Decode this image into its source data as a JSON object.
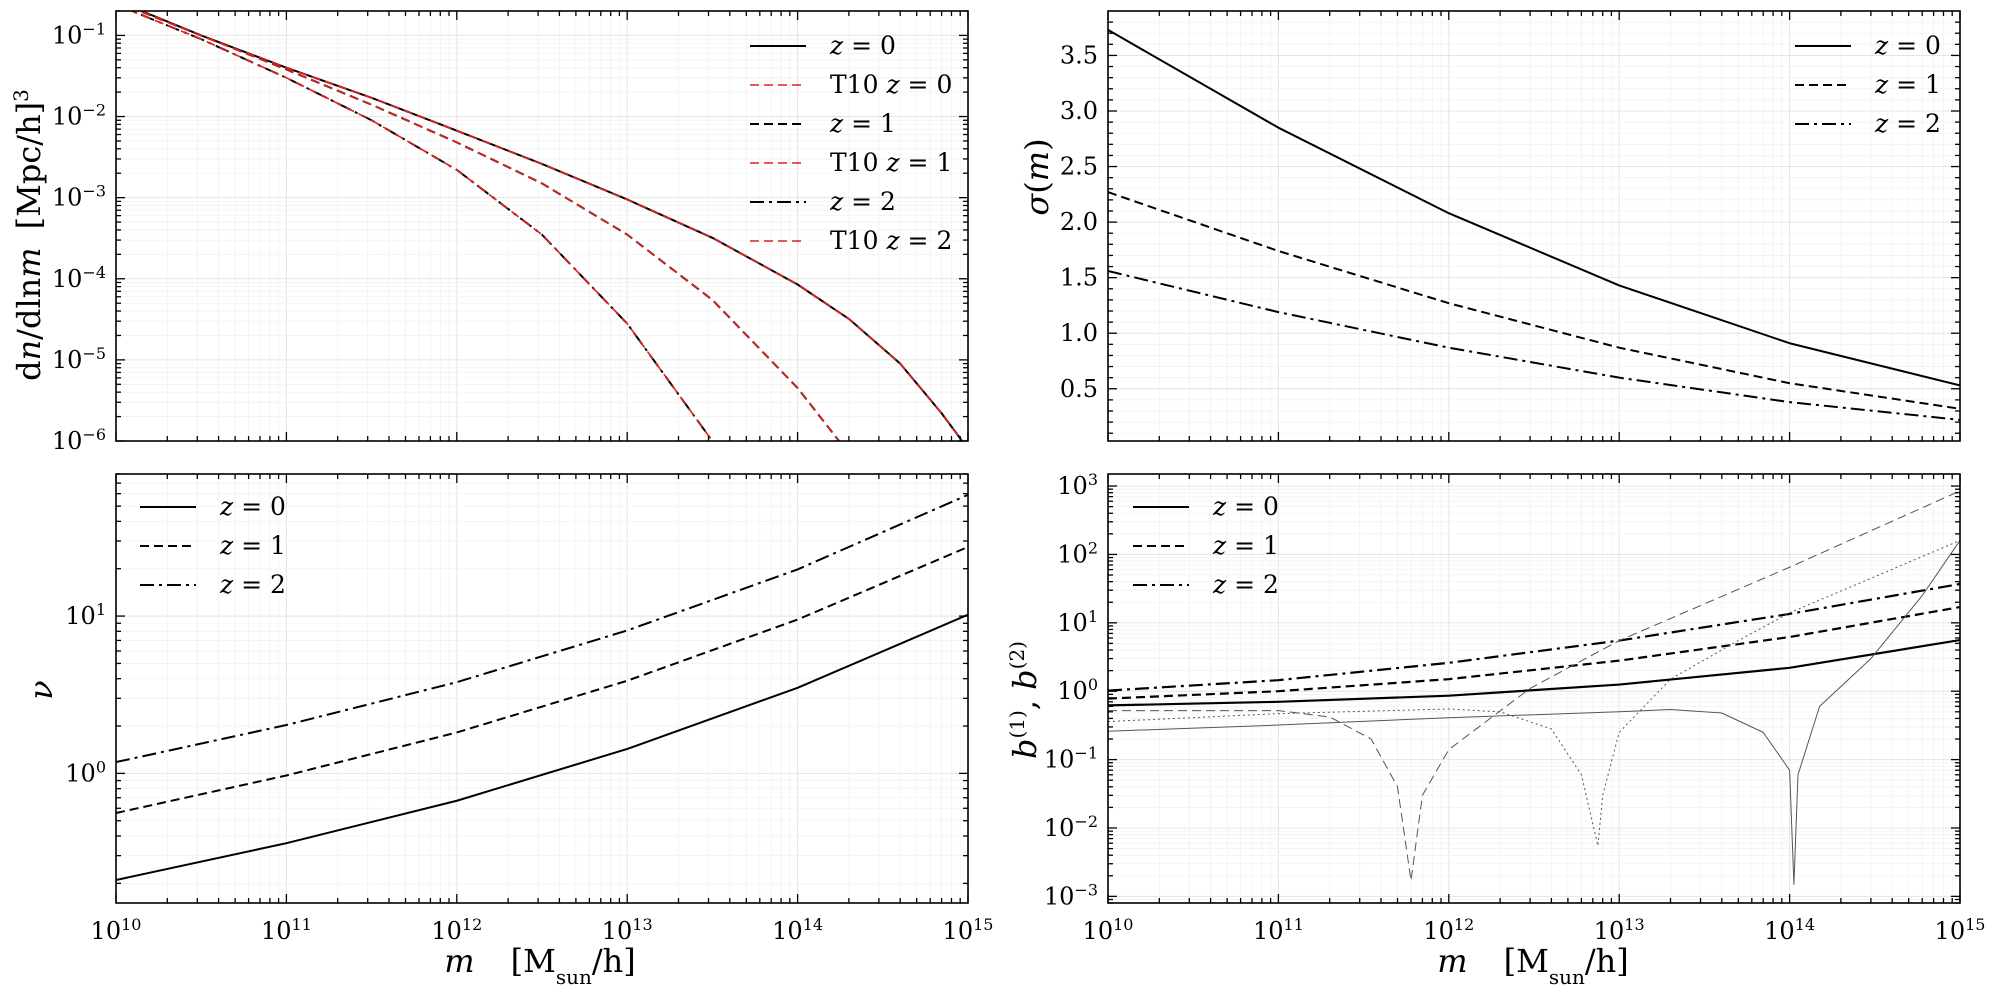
{
  "figure": {
    "background": "#ffffff"
  },
  "chart_data": [
    {
      "id": "hmf",
      "type": "line",
      "xlabel": "m [Msun/h]",
      "ylabel": "dn/dlnm [Mpc/h]^3",
      "xscale": "log",
      "yscale": "log",
      "xlim": [
        10000000000.0,
        1000000000000000.0
      ],
      "ylim": [
        1e-06,
        0.2
      ],
      "grid": true,
      "legend_position": "top-right",
      "xticks": [
        {
          "value": 10000000000.0,
          "mant": "10",
          "exp": "10"
        },
        {
          "value": 100000000000.0,
          "mant": "10",
          "exp": "11"
        },
        {
          "value": 1000000000000.0,
          "mant": "10",
          "exp": "12"
        },
        {
          "value": 10000000000000.0,
          "mant": "10",
          "exp": "13"
        },
        {
          "value": 100000000000000.0,
          "mant": "10",
          "exp": "14"
        },
        {
          "value": 1000000000000000.0,
          "mant": "10",
          "exp": "15"
        }
      ],
      "show_xticklabels": false,
      "yticks": [
        {
          "value": 0.1,
          "mant": "10",
          "exp": "−1"
        },
        {
          "value": 0.01,
          "mant": "10",
          "exp": "−2"
        },
        {
          "value": 0.001,
          "mant": "10",
          "exp": "−3"
        },
        {
          "value": 0.0001,
          "mant": "10",
          "exp": "−4"
        },
        {
          "value": 1e-05,
          "mant": "10",
          "exp": "−5"
        },
        {
          "value": 1e-06,
          "mant": "10",
          "exp": "−6"
        }
      ],
      "series": [
        {
          "name": "z = 0",
          "color": "#000000",
          "dash": "solid",
          "x": [
            10000000000.0,
            31600000000.0,
            100000000000.0,
            316000000000.0,
            1000000000000.0,
            3160000000000.0,
            10000000000000.0,
            31600000000000.0,
            100000000000000.0,
            200000000000000.0,
            400000000000000.0,
            700000000000000.0,
            1000000000000000.0
          ],
          "y": [
            0.27,
            0.1,
            0.04,
            0.017,
            0.0067,
            0.0026,
            0.00095,
            0.00032,
            8.5e-05,
            3.2e-05,
            9e-06,
            2.2e-06,
            8e-07
          ]
        },
        {
          "name": "T10 z = 0",
          "color": "#e02020",
          "dash": "dashed",
          "x": [
            10000000000.0,
            31600000000.0,
            100000000000.0,
            316000000000.0,
            1000000000000.0,
            3160000000000.0,
            10000000000000.0,
            31600000000000.0,
            100000000000000.0,
            200000000000000.0,
            400000000000000.0,
            700000000000000.0,
            1000000000000000.0
          ],
          "y": [
            0.27,
            0.1,
            0.04,
            0.017,
            0.0067,
            0.0026,
            0.00095,
            0.00032,
            8.5e-05,
            3.2e-05,
            9e-06,
            2.2e-06,
            8e-07
          ]
        },
        {
          "name": "z = 1",
          "color": "#000000",
          "dash": "dashed",
          "x": [
            10000000000.0,
            31600000000.0,
            100000000000.0,
            316000000000.0,
            1000000000000.0,
            3160000000000.0,
            10000000000000.0,
            31600000000000.0,
            100000000000000.0,
            200000000000000.0
          ],
          "y": [
            0.26,
            0.1,
            0.038,
            0.014,
            0.0048,
            0.0015,
            0.00035,
            5.5e-05,
            4.5e-06,
            7e-07
          ]
        },
        {
          "name": "T10 z = 1",
          "color": "#e02020",
          "dash": "dashed",
          "x": [
            10000000000.0,
            31600000000.0,
            100000000000.0,
            316000000000.0,
            1000000000000.0,
            3160000000000.0,
            10000000000000.0,
            31600000000000.0,
            100000000000000.0,
            200000000000000.0
          ],
          "y": [
            0.26,
            0.1,
            0.038,
            0.014,
            0.0048,
            0.0015,
            0.00035,
            5.5e-05,
            4.5e-06,
            7e-07
          ]
        },
        {
          "name": "z = 2",
          "color": "#000000",
          "dash": "dashdot",
          "x": [
            10000000000.0,
            31600000000.0,
            100000000000.0,
            316000000000.0,
            1000000000000.0,
            3160000000000.0,
            10000000000000.0,
            31600000000000.0,
            60000000000000.0
          ],
          "y": [
            0.24,
            0.09,
            0.03,
            0.009,
            0.0022,
            0.00035,
            2.8e-05,
            1e-06,
            6e-07
          ]
        },
        {
          "name": "T10 z = 2",
          "color": "#e02020",
          "dash": "dashed",
          "x": [
            10000000000.0,
            31600000000.0,
            100000000000.0,
            316000000000.0,
            1000000000000.0,
            3160000000000.0,
            10000000000000.0,
            31600000000000.0,
            60000000000000.0
          ],
          "y": [
            0.24,
            0.09,
            0.03,
            0.009,
            0.0022,
            0.00035,
            2.8e-05,
            1e-06,
            6e-07
          ]
        }
      ]
    },
    {
      "id": "sigma",
      "type": "line",
      "xlabel": "m [Msun/h]",
      "ylabel": "σ(m)",
      "xscale": "log",
      "yscale": "linear",
      "xlim": [
        10000000000.0,
        1000000000000000.0
      ],
      "ylim": [
        0.03,
        3.9
      ],
      "grid": true,
      "legend_position": "top-right",
      "xticks": [
        {
          "value": 10000000000.0,
          "mant": "10",
          "exp": "10"
        },
        {
          "value": 100000000000.0,
          "mant": "10",
          "exp": "11"
        },
        {
          "value": 1000000000000.0,
          "mant": "10",
          "exp": "12"
        },
        {
          "value": 10000000000000.0,
          "mant": "10",
          "exp": "13"
        },
        {
          "value": 100000000000000.0,
          "mant": "10",
          "exp": "14"
        },
        {
          "value": 1000000000000000.0,
          "mant": "10",
          "exp": "15"
        }
      ],
      "show_xticklabels": false,
      "yticks": [
        {
          "value": 0.5,
          "label": "0.5"
        },
        {
          "value": 1.0,
          "label": "1.0"
        },
        {
          "value": 1.5,
          "label": "1.5"
        },
        {
          "value": 2.0,
          "label": "2.0"
        },
        {
          "value": 2.5,
          "label": "2.5"
        },
        {
          "value": 3.0,
          "label": "3.0"
        },
        {
          "value": 3.5,
          "label": "3.5"
        }
      ],
      "series": [
        {
          "name": "z = 0",
          "color": "#000000",
          "dash": "solid",
          "x": [
            10000000000.0,
            100000000000.0,
            1000000000000.0,
            10000000000000.0,
            100000000000000.0,
            1000000000000000.0
          ],
          "y": [
            3.73,
            2.85,
            2.08,
            1.43,
            0.91,
            0.53
          ]
        },
        {
          "name": "z = 1",
          "color": "#000000",
          "dash": "dashed",
          "x": [
            10000000000.0,
            100000000000.0,
            1000000000000.0,
            10000000000000.0,
            100000000000000.0,
            1000000000000000.0
          ],
          "y": [
            2.27,
            1.74,
            1.27,
            0.87,
            0.55,
            0.32
          ]
        },
        {
          "name": "z = 2",
          "color": "#000000",
          "dash": "dashdot",
          "x": [
            10000000000.0,
            100000000000.0,
            1000000000000.0,
            10000000000000.0,
            100000000000000.0,
            1000000000000000.0
          ],
          "y": [
            1.56,
            1.19,
            0.87,
            0.6,
            0.38,
            0.22
          ]
        }
      ]
    },
    {
      "id": "nu",
      "type": "line",
      "xlabel": "m [Msun/h]",
      "ylabel": "ν",
      "xscale": "log",
      "yscale": "log",
      "xlim": [
        10000000000.0,
        1000000000000000.0
      ],
      "ylim": [
        0.15,
        80
      ],
      "grid": true,
      "legend_position": "top-left",
      "xticks": [
        {
          "value": 10000000000.0,
          "mant": "10",
          "exp": "10"
        },
        {
          "value": 100000000000.0,
          "mant": "10",
          "exp": "11"
        },
        {
          "value": 1000000000000.0,
          "mant": "10",
          "exp": "12"
        },
        {
          "value": 10000000000000.0,
          "mant": "10",
          "exp": "13"
        },
        {
          "value": 100000000000000.0,
          "mant": "10",
          "exp": "14"
        },
        {
          "value": 1000000000000000.0,
          "mant": "10",
          "exp": "15"
        }
      ],
      "show_xticklabels": true,
      "yticks": [
        {
          "value": 1,
          "mant": "10",
          "exp": "0"
        },
        {
          "value": 10,
          "mant": "10",
          "exp": "1"
        }
      ],
      "series": [
        {
          "name": "z = 0",
          "color": "#000000",
          "dash": "solid",
          "x": [
            10000000000.0,
            100000000000.0,
            1000000000000.0,
            10000000000000.0,
            100000000000000.0,
            1000000000000000.0
          ],
          "y": [
            0.21,
            0.36,
            0.67,
            1.43,
            3.5,
            10.2
          ]
        },
        {
          "name": "z = 1",
          "color": "#000000",
          "dash": "dashed",
          "x": [
            10000000000.0,
            100000000000.0,
            1000000000000.0,
            10000000000000.0,
            100000000000000.0,
            1000000000000000.0
          ],
          "y": [
            0.56,
            0.97,
            1.82,
            3.88,
            9.5,
            27.5
          ]
        },
        {
          "name": "z = 2",
          "color": "#000000",
          "dash": "dashdot",
          "x": [
            10000000000.0,
            100000000000.0,
            1000000000000.0,
            10000000000000.0,
            100000000000000.0,
            1000000000000000.0
          ],
          "y": [
            1.18,
            2.03,
            3.8,
            8.1,
            19.8,
            59
          ]
        }
      ]
    },
    {
      "id": "bias",
      "type": "line",
      "xlabel": "m [Msun/h]",
      "ylabel": "b(1), b(2)",
      "xscale": "log",
      "yscale": "log",
      "xlim": [
        10000000000.0,
        1000000000000000.0
      ],
      "ylim": [
        0.0008,
        1500
      ],
      "grid": true,
      "legend_position": "top-left",
      "xticks": [
        {
          "value": 10000000000.0,
          "mant": "10",
          "exp": "10"
        },
        {
          "value": 100000000000.0,
          "mant": "10",
          "exp": "11"
        },
        {
          "value": 1000000000000.0,
          "mant": "10",
          "exp": "12"
        },
        {
          "value": 10000000000000.0,
          "mant": "10",
          "exp": "13"
        },
        {
          "value": 100000000000000.0,
          "mant": "10",
          "exp": "14"
        },
        {
          "value": 1000000000000000.0,
          "mant": "10",
          "exp": "15"
        }
      ],
      "show_xticklabels": true,
      "yticks": [
        {
          "value": 1000.0,
          "mant": "10",
          "exp": "3"
        },
        {
          "value": 100.0,
          "mant": "10",
          "exp": "2"
        },
        {
          "value": 10.0,
          "mant": "10",
          "exp": "1"
        },
        {
          "value": 1.0,
          "mant": "10",
          "exp": "0"
        },
        {
          "value": 0.1,
          "mant": "10",
          "exp": "−1"
        },
        {
          "value": 0.01,
          "mant": "10",
          "exp": "−2"
        },
        {
          "value": 0.001,
          "mant": "10",
          "exp": "−3"
        }
      ],
      "series": [
        {
          "name": "z = 0",
          "color": "#000000",
          "dash": "solid",
          "width": 2.2,
          "x": [
            10000000000.0,
            100000000000.0,
            1000000000000.0,
            10000000000000.0,
            100000000000000.0,
            1000000000000000.0
          ],
          "y": [
            0.62,
            0.7,
            0.86,
            1.25,
            2.2,
            5.6
          ]
        },
        {
          "name": "z = 1",
          "color": "#000000",
          "dash": "dashed",
          "width": 2.2,
          "x": [
            10000000000.0,
            100000000000.0,
            1000000000000.0,
            10000000000000.0,
            100000000000000.0,
            1000000000000000.0
          ],
          "y": [
            0.78,
            1.0,
            1.5,
            2.8,
            6.2,
            17
          ]
        },
        {
          "name": "z = 2",
          "color": "#000000",
          "dash": "dashdot",
          "width": 2.2,
          "x": [
            10000000000.0,
            100000000000.0,
            1000000000000.0,
            10000000000000.0,
            100000000000000.0,
            1000000000000000.0
          ],
          "y": [
            1.02,
            1.45,
            2.6,
            5.5,
            13.5,
            37
          ]
        },
        {
          "name": "",
          "color": "#555555",
          "dash": "solid",
          "width": 1,
          "x": [
            10000000000.0,
            100000000000.0,
            1000000000000.0,
            10000000000000.0,
            20000000000000.0,
            40000000000000.0,
            70000000000000.0,
            100000000000000.0,
            106000000000000.0,
            112000000000000.0,
            150000000000000.0,
            300000000000000.0,
            600000000000000.0,
            1000000000000000.0
          ],
          "y": [
            0.26,
            0.32,
            0.41,
            0.5,
            0.54,
            0.48,
            0.25,
            0.07,
            0.0015,
            0.06,
            0.6,
            3.0,
            25,
            160
          ]
        },
        {
          "name": "",
          "color": "#555555",
          "dash": "dotted",
          "width": 1,
          "x": [
            10000000000.0,
            100000000000.0,
            1000000000000.0,
            2000000000000.0,
            4000000000000.0,
            6000000000000.0,
            7500000000000.0,
            8000000000000.0,
            10000000000000.0,
            20000000000000.0,
            50000000000000.0,
            100000000000000.0,
            1000000000000000.0
          ],
          "y": [
            0.36,
            0.47,
            0.55,
            0.5,
            0.28,
            0.06,
            0.0055,
            0.03,
            0.25,
            1.5,
            5.5,
            14,
            160
          ]
        },
        {
          "name": "",
          "color": "#555555",
          "dash": "dashed",
          "width": 1,
          "x": [
            10000000000.0,
            100000000000.0,
            200000000000.0,
            350000000000.0,
            500000000000.0,
            600000000000.0,
            700000000000.0,
            1000000000000.0,
            3000000000000.0,
            10000000000000.0,
            100000000000000.0,
            1000000000000000.0
          ],
          "y": [
            0.52,
            0.52,
            0.42,
            0.2,
            0.04,
            0.0017,
            0.03,
            0.14,
            1.1,
            5.5,
            65,
            850
          ]
        }
      ]
    }
  ],
  "shared": {
    "xlabel_m": "m",
    "xlabel_units_open": "[M",
    "xlabel_units_sub": "sun",
    "xlabel_units_close": "/h]"
  }
}
